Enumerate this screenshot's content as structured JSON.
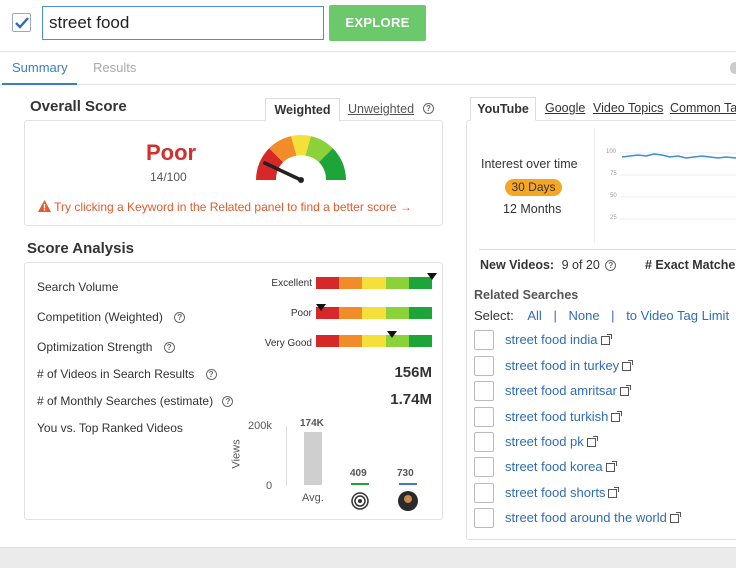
{
  "search": {
    "value": "street food",
    "explore_label": "EXPLORE"
  },
  "tabs": {
    "summary": "Summary",
    "results": "Results"
  },
  "overall": {
    "title": "Overall Score",
    "weighted_tab": "Weighted",
    "unweighted_tab": "Unweighted",
    "rating": "Poor",
    "score": "14/100",
    "warning": "Try clicking a Keyword in the Related panel to find a better score →"
  },
  "analysis": {
    "title": "Score Analysis",
    "rows": [
      {
        "label": "Search Volume",
        "meter_label": "Excellent"
      },
      {
        "label": "Competition (Weighted)",
        "meter_label": "Poor"
      },
      {
        "label": "Optimization Strength",
        "meter_label": "Very Good"
      }
    ],
    "videos_label": "# of Videos in Search Results",
    "videos_value": "156M",
    "monthly_label": "# of Monthly Searches (estimate)",
    "monthly_value": "1.74M",
    "vs_label": "You vs. Top Ranked Videos",
    "chart": {
      "y_top": "200k",
      "y_bottom": "0",
      "y_axis_label": "Views",
      "bars": [
        {
          "value_label": "174K",
          "x_label": "Avg."
        },
        {
          "value_label": "409",
          "x_label": ""
        },
        {
          "value_label": "730",
          "x_label": ""
        }
      ]
    }
  },
  "right": {
    "tabs": [
      "YouTube",
      "Google",
      "Video Topics",
      "Common Ta"
    ],
    "interest_title": "Interest over time",
    "days_badge": "30 Days",
    "months": "12 Months",
    "spark_ticks": [
      "100",
      "75",
      "50",
      "25"
    ],
    "new_videos_label": "New Videos:",
    "new_videos_value": "9 of 20",
    "exact_matches": "# Exact Matche",
    "related_title": "Related Searches",
    "select_label": "Select:",
    "select_all": "All",
    "select_none": "None",
    "select_limit": "to Video Tag Limit",
    "separator": "|",
    "related": [
      "street food india",
      "street food in turkey",
      "street food amritsar",
      "street food turkish",
      "street food pk",
      "street food korea",
      "street food shorts",
      "street food around the world"
    ]
  },
  "colors": {
    "accent": "#3a7fc1",
    "poor": "#d0312d",
    "green_button": "#6bc96b",
    "warning": "#e35a2d",
    "badge": "#f5a623"
  },
  "gauge": {
    "score_fraction": 0.14
  }
}
